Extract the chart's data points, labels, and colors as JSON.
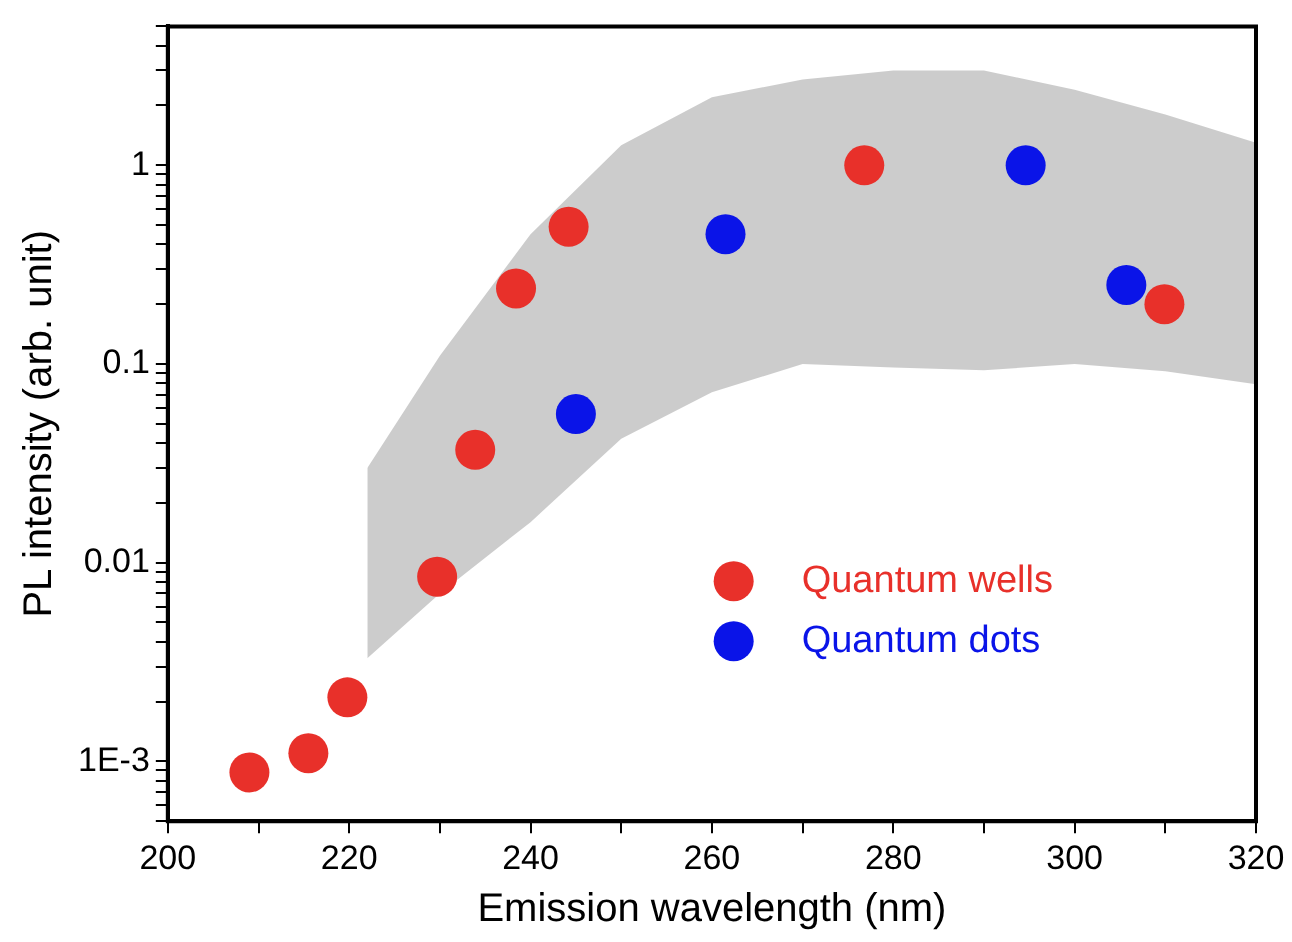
{
  "chart_data": {
    "type": "scatter",
    "xlabel": "Emission wavelength (nm)",
    "ylabel": "PL intensity (arb. unit)",
    "log": "y",
    "grid": false,
    "legend": "bottom right",
    "marker": "circle",
    "xlim": [
      200,
      320
    ],
    "xticks": [
      200,
      {
        "value": 210,
        "label": null
      },
      220,
      {
        "value": 230,
        "label": null
      },
      240,
      {
        "value": 250,
        "label": null
      },
      260,
      {
        "value": 270,
        "label": null
      },
      280,
      {
        "value": 290,
        "label": null
      },
      300,
      {
        "value": 310,
        "label": null
      },
      320
    ],
    "ylim": [
      0.0005,
      5
    ],
    "yticks": [
      {
        "value": 0.0005,
        "label": null
      },
      {
        "value": 0.0006,
        "label": null
      },
      {
        "value": 0.0007,
        "label": null
      },
      {
        "value": 0.0008,
        "label": null
      },
      {
        "value": 0.0009,
        "label": null
      },
      {
        "value": 0.001,
        "label": "1E-3"
      },
      {
        "value": 0.002,
        "label": null
      },
      {
        "value": 0.003,
        "label": null
      },
      {
        "value": 0.004,
        "label": null
      },
      {
        "value": 0.005,
        "label": null
      },
      {
        "value": 0.006,
        "label": null
      },
      {
        "value": 0.007,
        "label": null
      },
      {
        "value": 0.008,
        "label": null
      },
      {
        "value": 0.009,
        "label": null
      },
      0.01,
      {
        "value": 0.02,
        "label": null
      },
      {
        "value": 0.03,
        "label": null
      },
      {
        "value": 0.04,
        "label": null
      },
      {
        "value": 0.05,
        "label": null
      },
      {
        "value": 0.06,
        "label": null
      },
      {
        "value": 0.07,
        "label": null
      },
      {
        "value": 0.08,
        "label": null
      },
      {
        "value": 0.09,
        "label": null
      },
      0.1,
      {
        "value": 0.2,
        "label": null
      },
      {
        "value": 0.3,
        "label": null
      },
      {
        "value": 0.4,
        "label": null
      },
      {
        "value": 0.5,
        "label": null
      },
      {
        "value": 0.6,
        "label": null
      },
      {
        "value": 0.7,
        "label": null
      },
      {
        "value": 0.8,
        "label": null
      },
      {
        "value": 0.9,
        "label": null
      },
      1,
      {
        "value": 2,
        "label": null
      },
      {
        "value": 3,
        "label": null
      },
      {
        "value": 4,
        "label": null
      },
      {
        "value": 5,
        "label": null
      }
    ],
    "series": [
      {
        "type": "area",
        "color": "#808080",
        "x": [
          222,
          230,
          240,
          250,
          260,
          270,
          280,
          290,
          300,
          310,
          320
        ],
        "values": [
          null,
          null,
          null,
          null,
          null,
          null,
          null,
          null,
          null,
          null,
          null
        ],
        "lower": [
          0.0033,
          0.007,
          0.016,
          0.042,
          0.072,
          0.1,
          0.096,
          0.093,
          0.1,
          0.092,
          0.079
        ],
        "upper": [
          0.03,
          0.11,
          0.45,
          1.26,
          2.2,
          2.7,
          3.0,
          3.0,
          2.4,
          1.8,
          1.3
        ]
      },
      {
        "name": "Quantum wells",
        "color": "#e8302a",
        "x": [
          209.0,
          215.5,
          219.8,
          229.7,
          233.9,
          238.4,
          244.2,
          276.8,
          309.9
        ],
        "values": [
          0.00088,
          0.0011,
          0.0021,
          0.0085,
          0.037,
          0.24,
          0.49,
          1.0,
          0.2
        ]
      },
      {
        "name": "Quantum dots",
        "color": "#0a14e8",
        "x": [
          245.0,
          261.5,
          294.6,
          305.7
        ],
        "values": [
          0.056,
          0.45,
          1.0,
          0.25
        ]
      }
    ]
  }
}
